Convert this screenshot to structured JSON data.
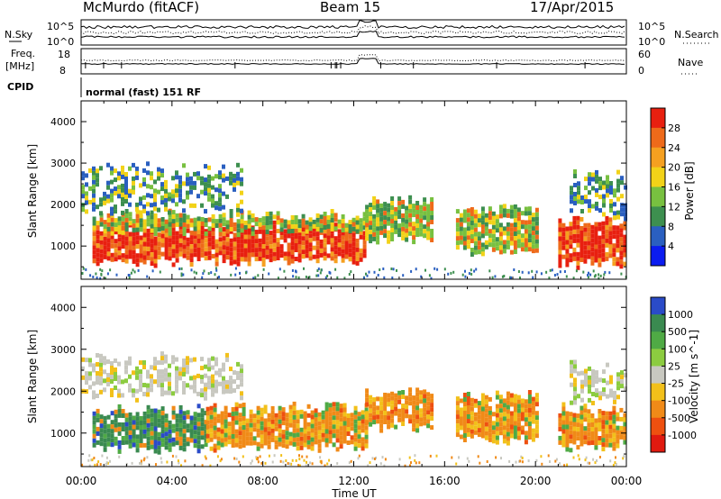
{
  "header": {
    "station": "McMurdo (fitACF)",
    "beam": "Beam 15",
    "date": "17/Apr/2015"
  },
  "top_panels": {
    "nsky_label": "N.Sky",
    "nsearch_label": "N.Search",
    "freq_label_1": "Freq.",
    "freq_label_2": "[MHz]",
    "nave_label": "Nave",
    "cpid_label": "CPID",
    "cpid_value": "normal (fast) 151 RF",
    "noise_ticks_left": [
      "10^5",
      "10^0"
    ],
    "noise_ticks_right": [
      "10^5",
      "10^0"
    ],
    "freq_ticks": [
      "18",
      "8"
    ],
    "nave_ticks": [
      "60",
      "0"
    ]
  },
  "chart_data": [
    {
      "type": "heatmap",
      "panel": "power",
      "ylabel": "Slant Range [km]",
      "colorbar_label": "Power [dB]",
      "colorbar_ticks": [
        "28",
        "24",
        "20",
        "16",
        "12",
        "8",
        "4"
      ],
      "colors": [
        "#0b1cf0",
        "#2a5fc0",
        "#3d8f4f",
        "#78c040",
        "#f2d218",
        "#f5a020",
        "#ee6a1a",
        "#e82010"
      ],
      "ylim": [
        200,
        4500
      ],
      "yticks": [
        "1000",
        "2000",
        "3000",
        "4000"
      ],
      "xlim": [
        "00:00",
        "24:00"
      ],
      "bands": [
        {
          "x0": 0.5,
          "x1": 12.5,
          "y0": 650,
          "y1": 1500,
          "level": "strong"
        },
        {
          "x0": 0.5,
          "x1": 12.5,
          "y0": 1400,
          "y1": 1750,
          "level": "medium"
        },
        {
          "x0": 0.0,
          "x1": 7.0,
          "y0": 1900,
          "y1": 2900,
          "level": "weak"
        },
        {
          "x0": 12.5,
          "x1": 15.5,
          "y0": 1200,
          "y1": 2100,
          "level": "medium"
        },
        {
          "x0": 16.5,
          "x1": 20.0,
          "y0": 900,
          "y1": 1900,
          "level": "medium"
        },
        {
          "x0": 21.0,
          "x1": 24.0,
          "y0": 600,
          "y1": 1600,
          "level": "strong"
        },
        {
          "x0": 21.5,
          "x1": 24.0,
          "y0": 1800,
          "y1": 2700,
          "level": "weak"
        }
      ]
    },
    {
      "type": "heatmap",
      "panel": "velocity",
      "ylabel": "Slant Range [km]",
      "colorbar_label": "Velocity [m s^-1]",
      "colorbar_ticks": [
        "1000",
        "500",
        "100",
        "25",
        "-25",
        "-100",
        "-500",
        "-1000"
      ],
      "colors": [
        "#2a4bc8",
        "#3a8a50",
        "#4faa45",
        "#8ccc40",
        "#c8c8c0",
        "#f2c01a",
        "#f08a18",
        "#ee5010",
        "#e01a10"
      ],
      "ylim": [
        200,
        4500
      ],
      "yticks": [
        "1000",
        "2000",
        "3000",
        "4000"
      ],
      "xlim": [
        "00:00",
        "24:00"
      ],
      "bands": [
        {
          "x0": 0.5,
          "x1": 5.5,
          "y0": 650,
          "y1": 1550,
          "level": "toward_moderate"
        },
        {
          "x0": 5.5,
          "x1": 12.5,
          "y0": 700,
          "y1": 1600,
          "level": "away_moderate"
        },
        {
          "x0": 0.0,
          "x1": 7.0,
          "y0": 1900,
          "y1": 2800,
          "level": "near_zero"
        },
        {
          "x0": 12.5,
          "x1": 15.5,
          "y0": 1200,
          "y1": 2000,
          "level": "away_moderate"
        },
        {
          "x0": 16.5,
          "x1": 20.0,
          "y0": 900,
          "y1": 1900,
          "level": "away_moderate"
        },
        {
          "x0": 21.0,
          "x1": 24.0,
          "y0": 700,
          "y1": 1600,
          "level": "away_moderate"
        },
        {
          "x0": 21.5,
          "x1": 24.0,
          "y0": 1800,
          "y1": 2600,
          "level": "near_zero"
        }
      ]
    }
  ],
  "x_axis": {
    "ticks": [
      "00:00",
      "04:00",
      "08:00",
      "12:00",
      "16:00",
      "20:00",
      "00:00"
    ],
    "label": "Time UT"
  }
}
